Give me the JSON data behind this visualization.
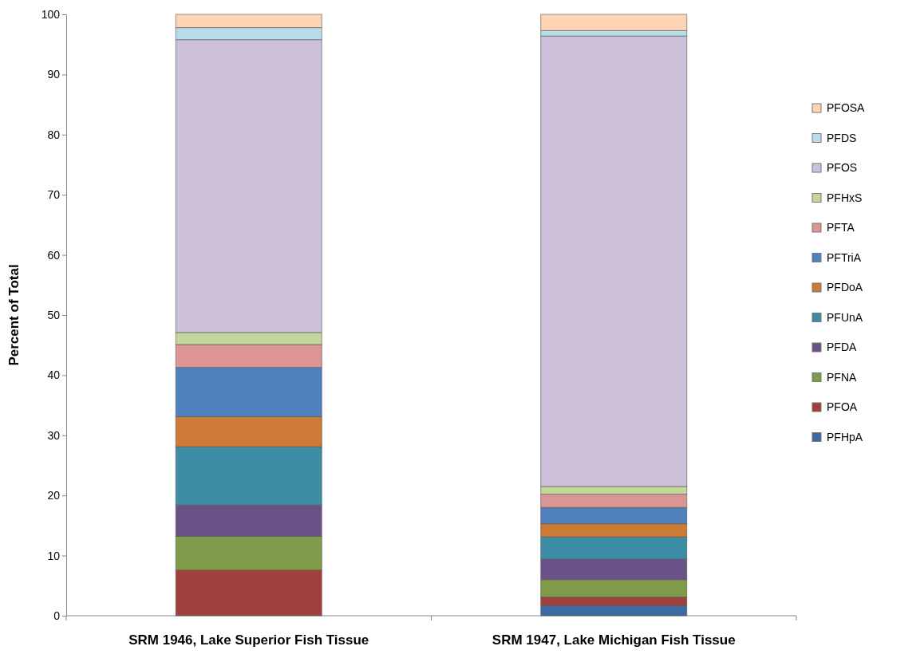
{
  "chart_data": {
    "type": "bar",
    "stacked": true,
    "ylabel": "Percent of Total",
    "categories": [
      "SRM 1946, Lake Superior Fish Tissue",
      "SRM 1947, Lake Michigan Fish Tissue"
    ],
    "ylim": [
      0,
      100
    ],
    "yticks": [
      0,
      10,
      20,
      30,
      40,
      50,
      60,
      70,
      80,
      90,
      100
    ],
    "grid": false,
    "legend": "right",
    "series": [
      {
        "name": "PFHpA",
        "color": "#3d6aa3",
        "values": [
          0,
          1.7
        ]
      },
      {
        "name": "PFOA",
        "color": "#a0403c",
        "values": [
          7.6,
          1.4
        ]
      },
      {
        "name": "PFNA",
        "color": "#7f9a48",
        "values": [
          5.6,
          2.9
        ]
      },
      {
        "name": "PFDA",
        "color": "#6a5288",
        "values": [
          5.2,
          3.4
        ]
      },
      {
        "name": "PFUnA",
        "color": "#3b8ca4",
        "values": [
          9.7,
          3.7
        ]
      },
      {
        "name": "PFDoA",
        "color": "#cc7a36",
        "values": [
          5.0,
          2.2
        ]
      },
      {
        "name": "PFTriA",
        "color": "#4f81bd",
        "values": [
          8.2,
          2.7
        ]
      },
      {
        "name": "PFTA",
        "color": "#db9594",
        "values": [
          3.8,
          2.2
        ]
      },
      {
        "name": "PFHxS",
        "color": "#c4d79b",
        "values": [
          2.0,
          1.3
        ]
      },
      {
        "name": "PFOS",
        "color": "#ccc0da",
        "values": [
          48.7,
          74.9
        ]
      },
      {
        "name": "PFDS",
        "color": "#b7dee8",
        "values": [
          2.0,
          0.9
        ]
      },
      {
        "name": "PFOSA",
        "color": "#fcd5b4",
        "values": [
          2.2,
          2.7
        ]
      }
    ]
  }
}
